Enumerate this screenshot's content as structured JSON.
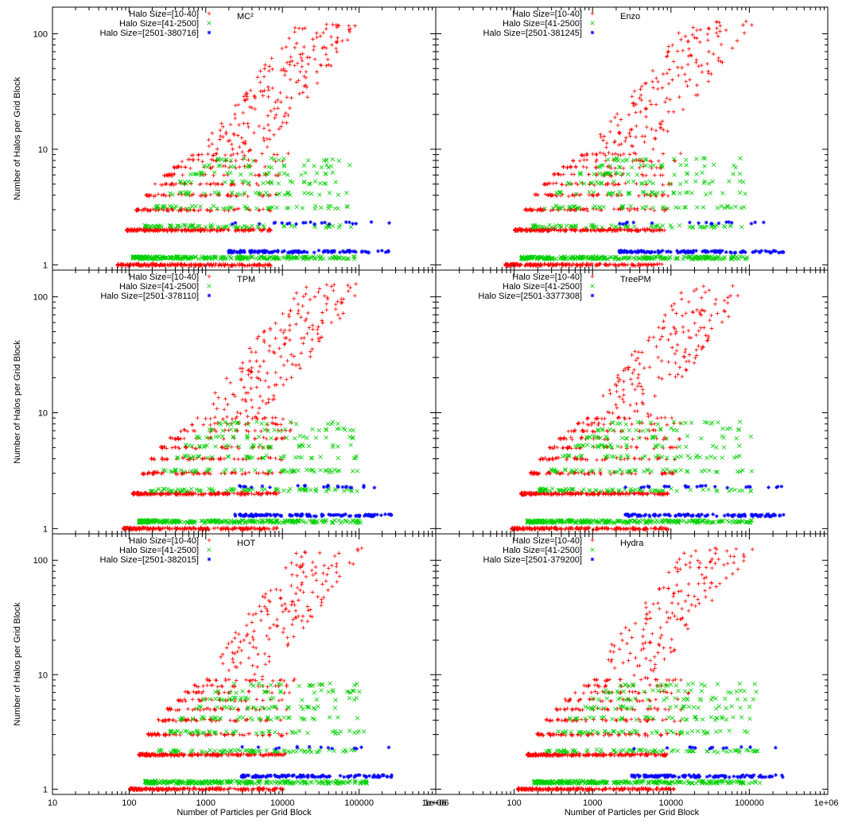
{
  "figure": {
    "shared_xlabel": "Number of Particles per Grid Block",
    "shared_ylabel": "Number of Halos per Grid Block"
  },
  "colors": {
    "small": "#ff0000",
    "medium": "#00d000",
    "large": "#0000ff"
  },
  "chart_data": [
    {
      "type": "scatter",
      "title": "MC²",
      "xlabel": "",
      "ylabel": "Number of Halos per Grid Block",
      "xscale": "log",
      "yscale": "log",
      "xlim": [
        10,
        1000000
      ],
      "ylim": [
        0.9,
        170
      ],
      "legend_position": "top-left",
      "series": [
        {
          "name": "Halo Size=[10-40]",
          "marker": "plus"
        },
        {
          "name": "Halo Size=[41-2500]",
          "marker": "cross"
        },
        {
          "name": "Halo Size=[2501-380716]",
          "marker": "star"
        }
      ],
      "xticks": [],
      "yticks": [
        "1",
        "10",
        "100"
      ]
    },
    {
      "type": "scatter",
      "title": "Enzo",
      "xlabel": "",
      "ylabel": "",
      "xscale": "log",
      "yscale": "log",
      "xlim": [
        10,
        1000000
      ],
      "ylim": [
        0.9,
        170
      ],
      "legend_position": "top-left",
      "series": [
        {
          "name": "Halo Size=[10-40]",
          "marker": "plus"
        },
        {
          "name": "Halo Size=[41-2500]",
          "marker": "cross"
        },
        {
          "name": "Halo Size=[2501-381245]",
          "marker": "star"
        }
      ],
      "xticks": [],
      "yticks": []
    },
    {
      "type": "scatter",
      "title": "TPM",
      "xlabel": "",
      "ylabel": "Number of Halos per Grid Block",
      "xscale": "log",
      "yscale": "log",
      "xlim": [
        10,
        1000000
      ],
      "ylim": [
        0.9,
        170
      ],
      "legend_position": "top-left",
      "series": [
        {
          "name": "Halo Size=[10-40]",
          "marker": "plus"
        },
        {
          "name": "Halo Size=[41-2500]",
          "marker": "cross"
        },
        {
          "name": "Halo Size=[2501-378110]",
          "marker": "star"
        }
      ],
      "xticks": [],
      "yticks": [
        "1",
        "10",
        "100"
      ]
    },
    {
      "type": "scatter",
      "title": "TreePM",
      "xlabel": "",
      "ylabel": "",
      "xscale": "log",
      "yscale": "log",
      "xlim": [
        10,
        1000000
      ],
      "ylim": [
        0.9,
        170
      ],
      "legend_position": "top-left",
      "series": [
        {
          "name": "Halo Size=[10-40]",
          "marker": "plus"
        },
        {
          "name": "Halo Size=[41-2500]",
          "marker": "cross"
        },
        {
          "name": "Halo Size=[2501-3377308]",
          "marker": "star"
        }
      ],
      "xticks": [],
      "yticks": []
    },
    {
      "type": "scatter",
      "title": "HOT",
      "xlabel": "Number of Particles per Grid Block",
      "ylabel": "Number of Halos per Grid Block",
      "xscale": "log",
      "yscale": "log",
      "xlim": [
        10,
        1000000
      ],
      "ylim": [
        0.9,
        170
      ],
      "legend_position": "top-left",
      "series": [
        {
          "name": "Halo Size=[10-40]",
          "marker": "plus"
        },
        {
          "name": "Halo Size=[41-2500]",
          "marker": "cross"
        },
        {
          "name": "Halo Size=[2501-382015]",
          "marker": "star"
        }
      ],
      "xticks": [
        "10",
        "100",
        "1000",
        "10000",
        "100000",
        "1e+06"
      ],
      "yticks": [
        "1",
        "10",
        "100"
      ]
    },
    {
      "type": "scatter",
      "title": "Hydra",
      "xlabel": "Number of Particles per Grid Block",
      "ylabel": "",
      "xscale": "log",
      "yscale": "log",
      "xlim": [
        10,
        1000000
      ],
      "ylim": [
        0.9,
        170
      ],
      "legend_position": "top-left",
      "series": [
        {
          "name": "Halo Size=[10-40]",
          "marker": "plus"
        },
        {
          "name": "Halo Size=[41-2500]",
          "marker": "cross"
        },
        {
          "name": "Halo Size=[2501-379200]",
          "marker": "star"
        }
      ],
      "xticks": [
        "1e+06",
        "100",
        "1000",
        "10000",
        "100000",
        "1e+06"
      ],
      "yticks": []
    }
  ]
}
